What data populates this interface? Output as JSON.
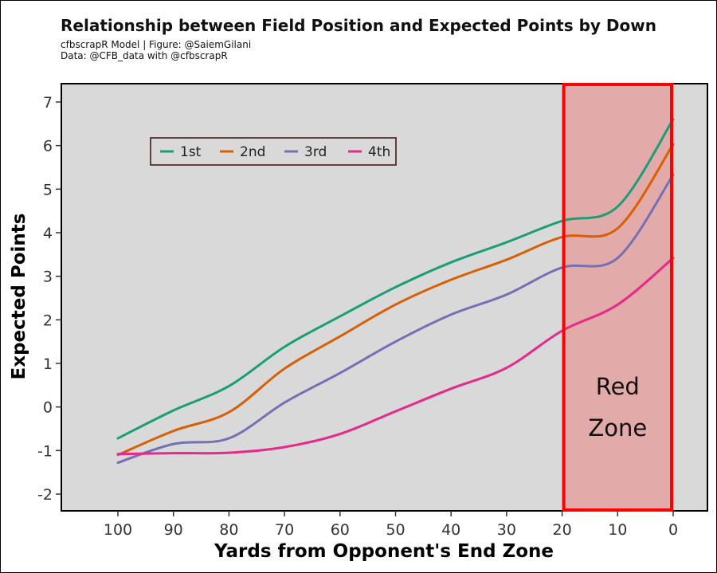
{
  "header": {
    "title": "Relationship between Field Position and Expected Points by Down",
    "credit_line": "cfbscrapR Model | Figure: @SaiemGilani",
    "data_line": "Data: @CFB_data with @cfbscrapR"
  },
  "annotation": {
    "line1": "Red",
    "line2": "Zone"
  },
  "chart_data": {
    "type": "line",
    "title": "Relationship between Field Position and Expected Points by Down",
    "subtitle": [
      "cfbscrapR Model | Figure: @SaiemGilani",
      "Data: @CFB_data with @cfbscrapR"
    ],
    "xlabel": "Yards from Opponent's End Zone",
    "ylabel": "Expected Points",
    "x_reversed": true,
    "xlim": [
      100,
      0
    ],
    "ylim": [
      -2.4,
      7.4
    ],
    "x_ticks": [
      100,
      90,
      80,
      70,
      60,
      50,
      40,
      30,
      20,
      10,
      0
    ],
    "y_ticks": [
      -2,
      -1,
      0,
      1,
      2,
      3,
      4,
      5,
      6,
      7
    ],
    "x_tick_labels": [
      "100",
      "90",
      "80",
      "70",
      "60",
      "50",
      "40",
      "30",
      "20",
      "10",
      "0"
    ],
    "y_tick_labels": [
      "-2",
      "-1",
      "0",
      "1",
      "2",
      "3",
      "4",
      "5",
      "6",
      "7"
    ],
    "grid": false,
    "legend_position": "top-left",
    "x": [
      100,
      90,
      80,
      70,
      60,
      50,
      40,
      30,
      20,
      10,
      0
    ],
    "series": [
      {
        "name": "1st",
        "color": "#1b9e77",
        "values": [
          -0.72,
          -0.08,
          0.48,
          1.38,
          2.08,
          2.75,
          3.32,
          3.78,
          4.27,
          4.6,
          6.6
        ]
      },
      {
        "name": "2nd",
        "color": "#d95f02",
        "values": [
          -1.1,
          -0.55,
          -0.12,
          0.88,
          1.62,
          2.35,
          2.92,
          3.38,
          3.9,
          4.1,
          6.03
        ]
      },
      {
        "name": "3rd",
        "color": "#7570b3",
        "values": [
          -1.28,
          -0.85,
          -0.72,
          0.1,
          0.78,
          1.5,
          2.12,
          2.58,
          3.2,
          3.42,
          5.33
        ]
      },
      {
        "name": "4th",
        "color": "#e7298a",
        "values": [
          -1.08,
          -1.06,
          -1.05,
          -0.92,
          -0.62,
          -0.1,
          0.42,
          0.9,
          1.75,
          2.35,
          3.42
        ]
      }
    ],
    "highlight_region": {
      "label": "Red Zone",
      "x_from": 20,
      "x_to": 0,
      "fill": "#e3aaaa",
      "border": "#ff0000"
    },
    "panel_background": "#d9d9d9"
  }
}
